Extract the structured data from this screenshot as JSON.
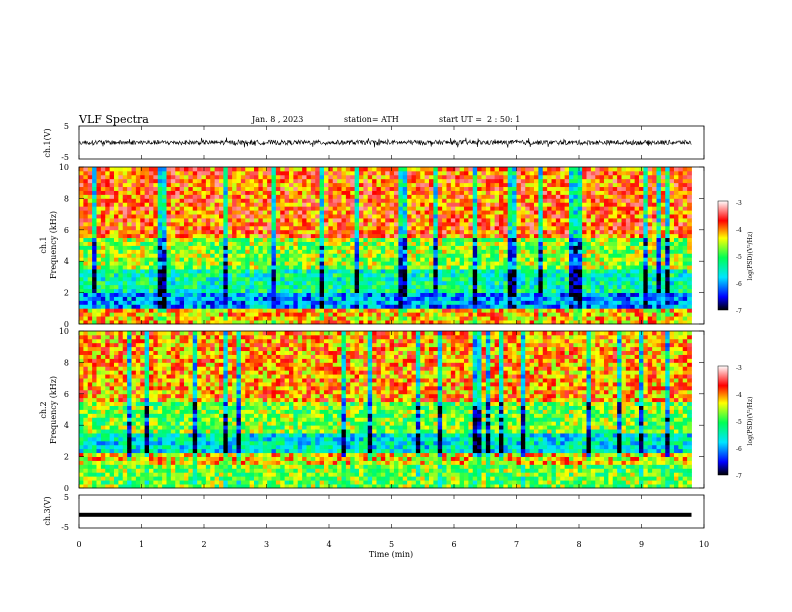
{
  "header": {
    "title": "VLF  Spectra",
    "date": "Jan. 8  , 2023",
    "station": "station= ATH",
    "start_label": "start  UT  =",
    "start_value": "2  : 50: 1"
  },
  "chart_data": [
    {
      "type": "line",
      "panel": "ch1-waveform",
      "ylabel": "ch.1(V)",
      "ylim": [
        -5,
        5
      ],
      "ytick_labels": [
        "5",
        "-5"
      ],
      "xlim": [
        0,
        10
      ],
      "data_extent_x": [
        0,
        9.8
      ],
      "signal": "noisy waveform centered near 0 V with spikes up to about ±1.5 V"
    },
    {
      "type": "heatmap",
      "panel": "ch1-spectrogram",
      "ylabel_lines": [
        "ch.1",
        "Frequency (kHz)"
      ],
      "xlim": [
        0,
        10
      ],
      "data_extent_x": [
        0,
        9.8
      ],
      "ylim": [
        0,
        10
      ],
      "ytick_labels": [
        "0",
        "2",
        "4",
        "6",
        "8",
        "10"
      ],
      "colorbar": {
        "label": "log(PSD)(V²/Hz)",
        "range": [
          -7,
          -3
        ],
        "tick_labels": [
          "-3",
          "-4",
          "-5",
          "-6",
          "-7"
        ]
      },
      "bands": [
        {
          "f": [
            0,
            1
          ],
          "level": -4.2
        },
        {
          "f": [
            1,
            2
          ],
          "level": -6.0
        },
        {
          "f": [
            2,
            3.5
          ],
          "level": -5.4
        },
        {
          "f": [
            3.5,
            5.5
          ],
          "level": -4.7
        },
        {
          "f": [
            5.5,
            10
          ],
          "level": -3.9
        }
      ]
    },
    {
      "type": "heatmap",
      "panel": "ch2-spectrogram",
      "ylabel_lines": [
        "ch.2",
        "Frequency (kHz)"
      ],
      "xlim": [
        0,
        10
      ],
      "data_extent_x": [
        0,
        9.8
      ],
      "ylim": [
        0,
        10
      ],
      "ytick_labels": [
        "0",
        "2",
        "4",
        "6",
        "8",
        "10"
      ],
      "colorbar": {
        "label": "log(PSD)(V²/Hz)",
        "range": [
          -7,
          -3
        ],
        "tick_labels": [
          "-3",
          "-4",
          "-5",
          "-6",
          "-7"
        ]
      },
      "bands": [
        {
          "f": [
            0,
            1.5
          ],
          "level": -4.8
        },
        {
          "f": [
            1.5,
            2.2
          ],
          "level": -4.3
        },
        {
          "f": [
            2.2,
            3.5
          ],
          "level": -5.6
        },
        {
          "f": [
            3.5,
            5.5
          ],
          "level": -4.8
        },
        {
          "f": [
            5.5,
            10
          ],
          "level": -4.1
        }
      ]
    },
    {
      "type": "line",
      "panel": "ch3-waveform",
      "ylabel": "ch.3(V)",
      "ylim": [
        -5,
        5
      ],
      "ytick_labels": [
        "5",
        "-5"
      ],
      "xlim": [
        0,
        10
      ],
      "data_extent_x": [
        0,
        9.8
      ],
      "signal": "nearly flat trace near -1 V"
    }
  ],
  "x_axis": {
    "label": "Time  (min)",
    "tick_labels": [
      "0",
      "1",
      "2",
      "3",
      "4",
      "5",
      "6",
      "7",
      "8",
      "9",
      "10"
    ]
  },
  "colors": {
    "colormap": [
      "#000000",
      "#0000ff",
      "#00e5ff",
      "#00ff55",
      "#ffff00",
      "#ff0000",
      "#ffffff"
    ]
  }
}
